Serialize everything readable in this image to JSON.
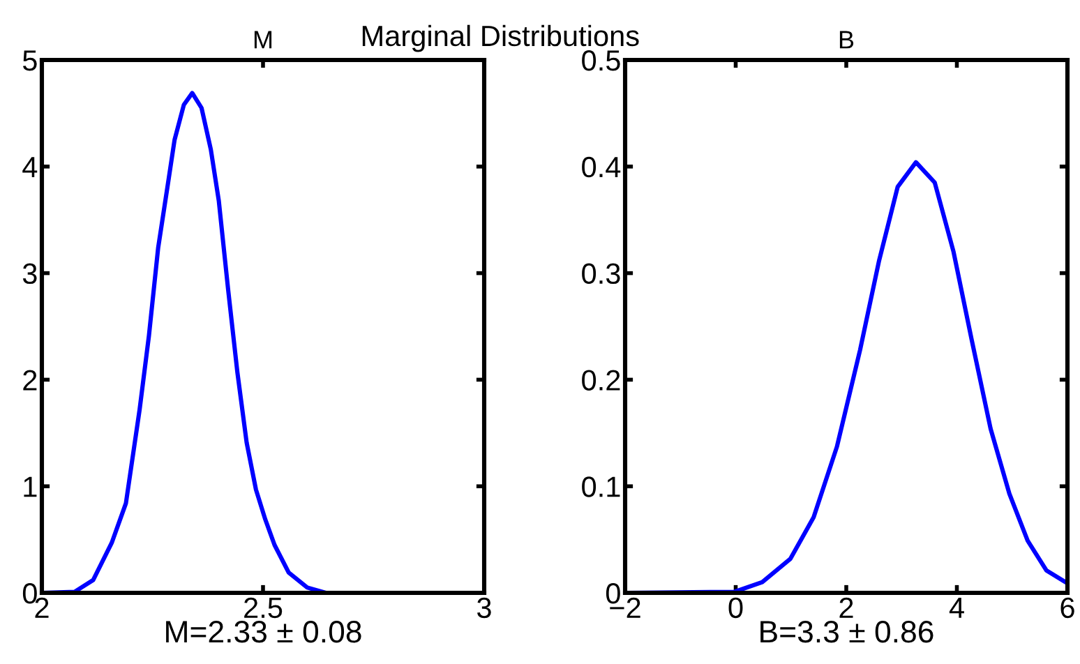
{
  "chart_data": [
    {
      "type": "line",
      "title": "M",
      "xlabel": "M=2.33 ± 0.08",
      "annotations": [
        "Marginal Distributions"
      ],
      "xlim": [
        2,
        3
      ],
      "ylim": [
        0,
        5
      ],
      "xticks": [
        2,
        2.5,
        3
      ],
      "yticks": [
        0,
        1,
        2,
        3,
        4,
        5
      ],
      "grid": false,
      "legend": false,
      "marker": "none",
      "line_style": "solid",
      "series": [
        {
          "color": "#0000ff",
          "x": [
            2.0,
            2.074,
            2.116,
            2.158,
            2.19,
            2.221,
            2.242,
            2.263,
            2.284,
            2.3,
            2.321,
            2.34,
            2.361,
            2.382,
            2.4,
            2.421,
            2.442,
            2.463,
            2.484,
            2.505,
            2.526,
            2.558,
            2.6,
            2.642,
            3.0
          ],
          "values": [
            0,
            0.01,
            0.12,
            0.47,
            0.84,
            1.72,
            2.41,
            3.24,
            3.81,
            4.25,
            4.58,
            4.69,
            4.55,
            4.16,
            3.68,
            2.85,
            2.07,
            1.41,
            0.97,
            0.69,
            0.45,
            0.19,
            0.05,
            0,
            0
          ]
        }
      ]
    },
    {
      "type": "line",
      "title": "B",
      "xlabel": "B=3.3 ± 0.86",
      "xlim": [
        -2,
        6
      ],
      "ylim": [
        0,
        0.5
      ],
      "xticks": [
        {
          "value": -2,
          "label": "−2"
        },
        0,
        2,
        4,
        6
      ],
      "yticks": [
        0,
        0.1,
        0.2,
        0.3,
        0.4,
        0.5
      ],
      "grid": false,
      "legend": false,
      "marker": "none",
      "line_style": "solid",
      "series": [
        {
          "color": "#0000ff",
          "x": [
            -2,
            -0.02,
            0.48,
            0.99,
            1.41,
            1.83,
            2.25,
            2.59,
            2.93,
            3.26,
            3.6,
            3.94,
            4.27,
            4.61,
            4.95,
            5.28,
            5.62,
            6
          ],
          "values": [
            0,
            0.001,
            0.01,
            0.032,
            0.071,
            0.137,
            0.228,
            0.311,
            0.381,
            0.404,
            0.385,
            0.32,
            0.237,
            0.154,
            0.093,
            0.049,
            0.021,
            0.009
          ]
        }
      ]
    }
  ]
}
